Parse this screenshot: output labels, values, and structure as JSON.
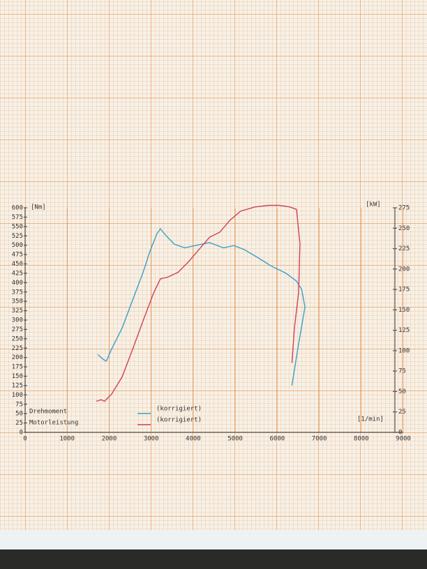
{
  "chart_data": {
    "type": "line",
    "xlabel": "[1/min]",
    "ylabel": "[Nm]",
    "y2label": "[kW]",
    "xlim": [
      0,
      9000
    ],
    "xticks": [
      0,
      1000,
      2000,
      3000,
      4000,
      5000,
      6000,
      7000,
      8000,
      9000
    ],
    "ylim": [
      0,
      600
    ],
    "yticks": [
      0,
      25,
      50,
      75,
      100,
      125,
      150,
      175,
      200,
      225,
      250,
      275,
      300,
      325,
      350,
      375,
      400,
      425,
      450,
      475,
      500,
      525,
      550,
      575,
      600
    ],
    "y2lim": [
      0,
      275
    ],
    "y2ticks": [
      0,
      25,
      50,
      75,
      100,
      125,
      150,
      175,
      200,
      225,
      250,
      275
    ],
    "series": [
      {
        "name": "Drehmoment",
        "qualifier": "(korrigiert)",
        "color": "#3a9fc8",
        "axis": "y",
        "x": [
          1730,
          1860,
          1930,
          2060,
          2310,
          2560,
          2810,
          2970,
          3140,
          3220,
          3360,
          3550,
          3800,
          4050,
          4385,
          4720,
          4970,
          5220,
          5550,
          5880,
          6210,
          6460,
          6580,
          6660,
          6500,
          6350
        ],
        "values": [
          208,
          195,
          190,
          223,
          279,
          354,
          428,
          484,
          531,
          544,
          525,
          503,
          493,
          499,
          507,
          493,
          499,
          488,
          466,
          443,
          425,
          404,
          382,
          335,
          230,
          125
        ]
      },
      {
        "name": "Motorleistung",
        "qualifier": "(korrigiert)",
        "color": "#d0405a",
        "axis": "y2",
        "x": [
          1690,
          1810,
          1890,
          2060,
          2310,
          2560,
          2810,
          3060,
          3220,
          3390,
          3640,
          3890,
          4140,
          4390,
          4630,
          4880,
          5130,
          5470,
          5800,
          6050,
          6300,
          6460,
          6540,
          6510,
          6410,
          6350
        ],
        "values": [
          38,
          40,
          38,
          47,
          68,
          102,
          137,
          171,
          188,
          190,
          196,
          209,
          224,
          239,
          245,
          260,
          271,
          276,
          278,
          278,
          276,
          273,
          231,
          171,
          128,
          85
        ]
      }
    ],
    "grid": true
  }
}
